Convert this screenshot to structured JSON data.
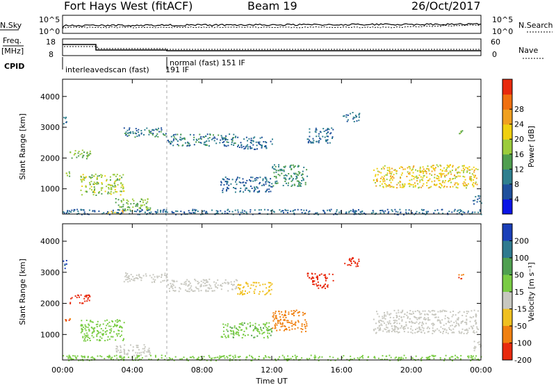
{
  "header": {
    "station": "Fort Hays West (fitACF)",
    "beam": "Beam 19",
    "date": "26/Oct/2017"
  },
  "noise_panel": {
    "left_label": "N.Sky",
    "right_label": "N.Search",
    "left_ticks": [
      "10^5",
      "10^0"
    ],
    "right_ticks": [
      "10^5",
      "10^0"
    ]
  },
  "freq_panel": {
    "left_label_line1": "Freq.",
    "left_label_line2": "[MHz]",
    "left_ticks": [
      "18",
      "8"
    ],
    "right_label": "Nave",
    "right_ticks": [
      "60",
      "0"
    ]
  },
  "cpid": {
    "label": "CPID",
    "modes": [
      {
        "text": "interleavedscan (fast)",
        "start_hour": 0.0
      },
      {
        "text": "191 IF",
        "start_hour": 4.6
      },
      {
        "text": "normal (fast) 151 IF",
        "start_hour": 6.1
      }
    ]
  },
  "chart_data": [
    {
      "type": "heatmap",
      "name": "power",
      "ylabel": "Slant Range [km]",
      "xlabel": "Time UT",
      "x_range_hours": [
        0,
        24
      ],
      "y_range_km": [
        180,
        4560
      ],
      "y_ticks": [
        1000,
        2000,
        3000,
        4000
      ],
      "x_tick_labels": [
        "00:00",
        "04:00",
        "08:00",
        "12:00",
        "16:00",
        "20:00",
        "00:00"
      ],
      "colorbar": {
        "label": "Power [dB]",
        "ticks": [
          "4",
          "8",
          "12",
          "16",
          "20",
          "24",
          "28"
        ],
        "colors": [
          "#0a14e6",
          "#1e4f9c",
          "#2e7f8e",
          "#4f9e4f",
          "#9ccc3c",
          "#f0d010",
          "#f0a020",
          "#f07010",
          "#e82a0e"
        ]
      },
      "regions": [
        {
          "t0": 0.0,
          "t1": 0.2,
          "r0": 3100,
          "r1": 3400,
          "value": 8
        },
        {
          "t0": 0.1,
          "t1": 0.4,
          "r0": 1400,
          "r1": 1600,
          "value": 18
        },
        {
          "t0": 0.4,
          "t1": 1.6,
          "r0": 2000,
          "r1": 2300,
          "value": 16
        },
        {
          "t0": 1.0,
          "t1": 3.5,
          "r0": 800,
          "r1": 1500,
          "value": 18
        },
        {
          "t0": 3.0,
          "t1": 5.0,
          "r0": 300,
          "r1": 700,
          "value": 16
        },
        {
          "t0": 2.5,
          "t1": 3.5,
          "r0": 200,
          "r1": 320,
          "value": 26
        },
        {
          "t0": 3.5,
          "t1": 6.0,
          "r0": 2700,
          "r1": 3000,
          "value": 10
        },
        {
          "t0": 6.0,
          "t1": 10.0,
          "r0": 2400,
          "r1": 2800,
          "value": 10
        },
        {
          "t0": 10.0,
          "t1": 12.0,
          "r0": 2300,
          "r1": 2700,
          "value": 8
        },
        {
          "t0": 9.0,
          "t1": 12.0,
          "r0": 900,
          "r1": 1400,
          "value": 8
        },
        {
          "t0": 12.0,
          "t1": 14.0,
          "r0": 1100,
          "r1": 1800,
          "value": 12
        },
        {
          "t0": 14.0,
          "t1": 15.5,
          "r0": 2500,
          "r1": 3000,
          "value": 8
        },
        {
          "t0": 16.0,
          "t1": 17.0,
          "r0": 3200,
          "r1": 3500,
          "value": 8
        },
        {
          "t0": 17.8,
          "t1": 23.8,
          "r0": 1050,
          "r1": 1800,
          "value": 22
        },
        {
          "t0": 22.7,
          "t1": 23.0,
          "r0": 2800,
          "r1": 3000,
          "value": 16
        },
        {
          "t0": 23.5,
          "t1": 24.0,
          "r0": 500,
          "r1": 800,
          "value": 8
        },
        {
          "t0": 0.0,
          "t1": 24.0,
          "r0": 180,
          "r1": 350,
          "value": 8
        }
      ]
    },
    {
      "type": "heatmap",
      "name": "velocity",
      "ylabel": "Slant Range [km]",
      "xlabel": "Time UT",
      "x_range_hours": [
        0,
        24
      ],
      "y_range_km": [
        180,
        4560
      ],
      "y_ticks": [
        1000,
        2000,
        3000,
        4000
      ],
      "x_tick_labels": [
        "00:00",
        "04:00",
        "08:00",
        "12:00",
        "16:00",
        "20:00",
        "00:00"
      ],
      "colorbar": {
        "label": "Velocity [m s⁻¹]",
        "ticks": [
          "200",
          "100",
          "50",
          "15",
          "-15",
          "-50",
          "-100",
          "-200"
        ],
        "colors": [
          "#1a3fb8",
          "#2f7a8f",
          "#4fa050",
          "#7acc44",
          "#c8c8c0",
          "#f0c020",
          "#f08010",
          "#e82a0e"
        ]
      },
      "regions": [
        {
          "t0": 0.0,
          "t1": 0.2,
          "r0": 3100,
          "r1": 3400,
          "value": 200
        },
        {
          "t0": 0.1,
          "t1": 0.4,
          "r0": 1400,
          "r1": 1600,
          "value": -100
        },
        {
          "t0": 0.4,
          "t1": 1.6,
          "r0": 2000,
          "r1": 2300,
          "value": -200
        },
        {
          "t0": 1.0,
          "t1": 3.5,
          "r0": 800,
          "r1": 1500,
          "value": 30
        },
        {
          "t0": 3.0,
          "t1": 5.0,
          "r0": 300,
          "r1": 700,
          "value": 0
        },
        {
          "t0": 3.5,
          "t1": 6.0,
          "r0": 2700,
          "r1": 3000,
          "value": 0
        },
        {
          "t0": 6.0,
          "t1": 10.0,
          "r0": 2400,
          "r1": 2800,
          "value": 0
        },
        {
          "t0": 10.0,
          "t1": 12.0,
          "r0": 2300,
          "r1": 2700,
          "value": -30
        },
        {
          "t0": 9.0,
          "t1": 12.0,
          "r0": 900,
          "r1": 1400,
          "value": 40
        },
        {
          "t0": 12.0,
          "t1": 14.0,
          "r0": 1100,
          "r1": 1800,
          "value": -80
        },
        {
          "t0": 14.0,
          "t1": 15.5,
          "r0": 2500,
          "r1": 3000,
          "value": -200
        },
        {
          "t0": 16.0,
          "t1": 17.0,
          "r0": 3200,
          "r1": 3500,
          "value": -200
        },
        {
          "t0": 17.8,
          "t1": 23.8,
          "r0": 1050,
          "r1": 1800,
          "value": 0
        },
        {
          "t0": 22.7,
          "t1": 23.0,
          "r0": 2800,
          "r1": 3000,
          "value": -100
        },
        {
          "t0": 23.5,
          "t1": 24.0,
          "r0": 500,
          "r1": 800,
          "value": 0
        },
        {
          "t0": 0.0,
          "t1": 24.0,
          "r0": 180,
          "r1": 350,
          "value": 30
        }
      ]
    }
  ]
}
